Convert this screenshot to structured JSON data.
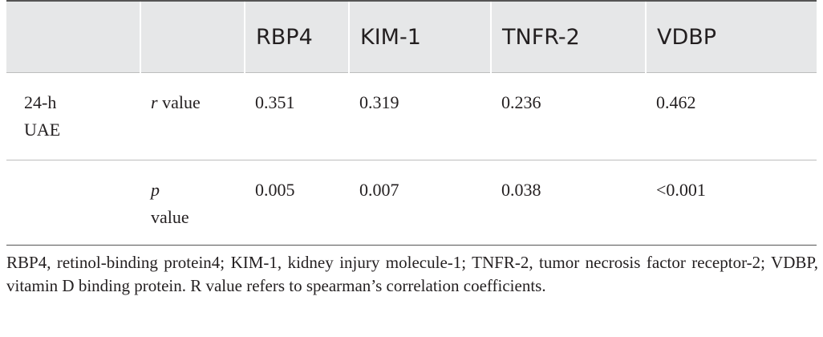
{
  "table": {
    "columns": [
      "RBP4",
      "KIM-1",
      "TNFR-2",
      "VDBP"
    ],
    "rows": [
      {
        "group": "24-h UAE",
        "stat": {
          "symbol": "r",
          "text": "value"
        },
        "values": [
          "0.351",
          "0.319",
          "0.236",
          "0.462"
        ]
      },
      {
        "stat": {
          "symbol": "p",
          "text": "value"
        },
        "values": [
          "0.005",
          "0.007",
          "0.038",
          "<0.001"
        ]
      }
    ]
  },
  "footnote": "RBP4, retinol-binding protein4; KIM-1, kidney injury molecule-1; TNFR-2, tumor necrosis factor receptor-2; VDBP, vitamin D binding protein. R value refers to spearman’s correlation coefficients."
}
